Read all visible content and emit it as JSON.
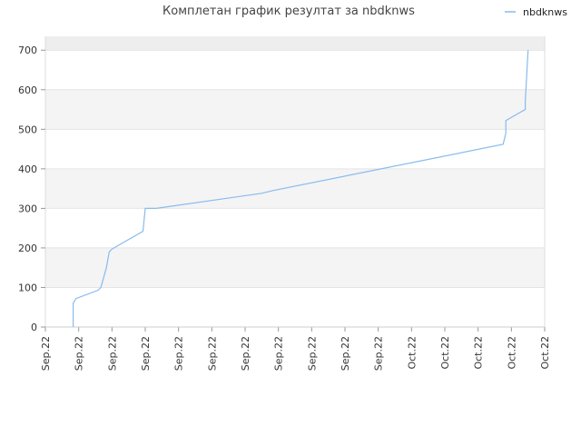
{
  "chart_data": {
    "type": "line",
    "title": "Комплетан график резултат за nbdknws",
    "xlabel": "",
    "ylabel": "",
    "ylim": [
      0,
      735
    ],
    "yticks": [
      0,
      100,
      200,
      300,
      400,
      500,
      600,
      700
    ],
    "xlim": [
      "2022-09-12",
      "2022-10-27"
    ],
    "x_tick_labels": [
      "Sep.22",
      "Sep.22",
      "Sep.22",
      "Sep.22",
      "Sep.22",
      "Sep.22",
      "Sep.22",
      "Sep.22",
      "Sep.22",
      "Sep.22",
      "Sep.22",
      "Oct.22",
      "Oct.22",
      "Oct.22",
      "Oct.22",
      "Oct.22"
    ],
    "legend": {
      "position": "top-right"
    },
    "grid": "horizontal-bands",
    "series": [
      {
        "name": "nbdknws",
        "color": "#88bbee",
        "points": [
          [
            "2022-09-14 12:00",
            0
          ],
          [
            "2022-09-14 12:00",
            60
          ],
          [
            "2022-09-14 18:00",
            72
          ],
          [
            "2022-09-16 18:00",
            93
          ],
          [
            "2022-09-17 00:00",
            100
          ],
          [
            "2022-09-17 12:00",
            150
          ],
          [
            "2022-09-17 18:00",
            190
          ],
          [
            "2022-09-18 00:00",
            197
          ],
          [
            "2022-09-20 19:00",
            242
          ],
          [
            "2022-09-21 00:00",
            300
          ],
          [
            "2022-09-22 00:00",
            300
          ],
          [
            "2022-10-01 12:00",
            338
          ],
          [
            "2022-10-02 12:00",
            345
          ],
          [
            "2022-10-23 06:00",
            462
          ],
          [
            "2022-10-23 12:00",
            490
          ],
          [
            "2022-10-23 12:00",
            522
          ],
          [
            "2022-10-25 06:00",
            550
          ],
          [
            "2022-10-25 06:00",
            570
          ],
          [
            "2022-10-25 12:00",
            700
          ]
        ]
      }
    ]
  }
}
